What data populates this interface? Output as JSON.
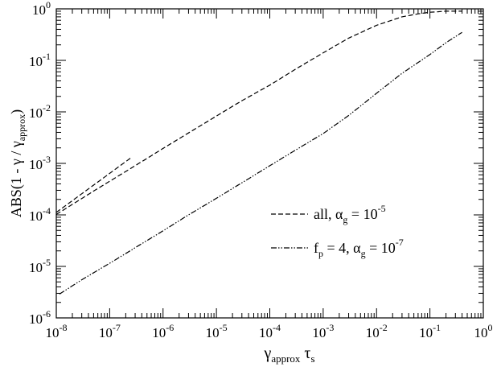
{
  "chart_data": {
    "type": "line",
    "xscale": "log",
    "yscale": "log",
    "xlim": [
      1e-08,
      1
    ],
    "ylim": [
      1e-06,
      1
    ],
    "grid": false,
    "legend_position": "center-right",
    "xlabel": {
      "base": "γ",
      "sub1": "approx",
      "mid": " τ",
      "sub2": "s"
    },
    "ylabel": {
      "pre": "ABS(1 - γ / γ",
      "sub": "approx",
      "post": ")"
    },
    "x_ticks": [
      {
        "value": 1e-08,
        "mant": "10",
        "exp": "-8"
      },
      {
        "value": 1e-07,
        "mant": "10",
        "exp": "-7"
      },
      {
        "value": 1e-06,
        "mant": "10",
        "exp": "-6"
      },
      {
        "value": 1e-05,
        "mant": "10",
        "exp": "-5"
      },
      {
        "value": 0.0001,
        "mant": "10",
        "exp": "-4"
      },
      {
        "value": 0.001,
        "mant": "10",
        "exp": "-3"
      },
      {
        "value": 0.01,
        "mant": "10",
        "exp": "-2"
      },
      {
        "value": 0.1,
        "mant": "10",
        "exp": "-1"
      },
      {
        "value": 1,
        "mant": "10",
        "exp": "0"
      }
    ],
    "y_ticks": [
      {
        "value": 1e-06,
        "mant": "10",
        "exp": "-6"
      },
      {
        "value": 1e-05,
        "mant": "10",
        "exp": "-5"
      },
      {
        "value": 0.0001,
        "mant": "10",
        "exp": "-4"
      },
      {
        "value": 0.001,
        "mant": "10",
        "exp": "-3"
      },
      {
        "value": 0.01,
        "mant": "10",
        "exp": "-2"
      },
      {
        "value": 0.1,
        "mant": "10",
        "exp": "-1"
      },
      {
        "value": 1,
        "mant": "10",
        "exp": "0"
      }
    ],
    "legend": [
      {
        "series": 0,
        "text1": "all, α",
        "sub": "g",
        "text2": " = 10",
        "sup": "-5"
      },
      {
        "series": 1,
        "text1": "f",
        "sub0": "p",
        "text0": " = 4, α",
        "sub": "g",
        "text2": " = 10",
        "sup": "-7"
      }
    ],
    "series": [
      {
        "style": "dashed",
        "x": [
          1e-08,
          2e-08,
          5e-08,
          1e-07,
          3e-07,
          1e-06,
          3e-06,
          1e-05,
          3e-05,
          0.0001,
          0.0003,
          0.001,
          0.003,
          0.01,
          0.03,
          0.06,
          0.1,
          0.2,
          0.4
        ],
        "y": [
          0.000102,
          0.00016,
          0.00029,
          0.00045,
          0.0009,
          0.00195,
          0.0039,
          0.0083,
          0.0165,
          0.033,
          0.067,
          0.14,
          0.27,
          0.48,
          0.7,
          0.8,
          0.86,
          0.9,
          0.9
        ]
      },
      {
        "style": "dashdotdot",
        "x": [
          1.15e-08,
          3e-08,
          1e-07,
          3e-07,
          1e-06,
          3e-06,
          1e-05,
          3e-05,
          0.0001,
          0.0003,
          0.001,
          0.003,
          0.01,
          0.03,
          0.1,
          0.2,
          0.4
        ],
        "y": [
          2.9e-06,
          5.5e-06,
          1.15e-05,
          2.3e-05,
          4.9e-05,
          0.0001,
          0.00021,
          0.00042,
          0.0009,
          0.0018,
          0.0038,
          0.0085,
          0.023,
          0.056,
          0.13,
          0.22,
          0.35
        ]
      },
      {
        "style": "dashed",
        "x": [
          1e-08,
          2.5e-07
        ],
        "y": [
          0.000112,
          0.00128
        ]
      }
    ]
  }
}
